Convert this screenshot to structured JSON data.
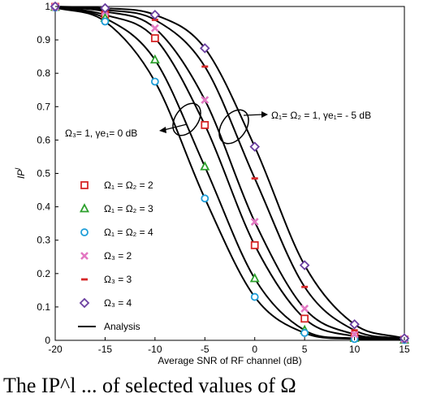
{
  "chart_data": {
    "type": "line",
    "xlabel": "Average SNR of RF channel (dB)",
    "ylabel": "IP^l",
    "xlim": [
      -20,
      15
    ],
    "ylim": [
      0,
      1
    ],
    "x_ticks": [
      "-20",
      "-15",
      "-10",
      "-5",
      "0",
      "5",
      "10",
      "15"
    ],
    "y_ticks": [
      "0",
      "0.1",
      "0.2",
      "0.3",
      "0.4",
      "0.5",
      "0.6",
      "0.7",
      "0.8",
      "0.9",
      "1"
    ],
    "grid": false,
    "legend_position": "left",
    "analysis_label": "Analysis",
    "annotations": [
      {
        "text": "Ω₁= Ω₂ = 1, γe₁= - 5 dB"
      },
      {
        "text": "Ω₃= 1, γe₁= 0 dB"
      }
    ],
    "series": [
      {
        "name": "Ω₁ = Ω₂ = 2",
        "marker": "square",
        "color": "#d62728",
        "x": [
          -20,
          -15,
          -10,
          -5,
          0,
          5,
          10,
          15
        ],
        "y": [
          0.999,
          0.975,
          0.905,
          0.645,
          0.285,
          0.065,
          0.012,
          0.002
        ]
      },
      {
        "name": "Ω₁ = Ω₂ = 3",
        "marker": "triangle",
        "color": "#2ca02c",
        "x": [
          -20,
          -15,
          -10,
          -5,
          0,
          5,
          10,
          15
        ],
        "y": [
          0.998,
          0.965,
          0.84,
          0.52,
          0.185,
          0.03,
          0.006,
          0.001
        ]
      },
      {
        "name": "Ω₁ = Ω₂ = 4",
        "marker": "circle",
        "color": "#1f9ed8",
        "x": [
          -20,
          -15,
          -10,
          -5,
          0,
          5,
          10,
          15
        ],
        "y": [
          0.997,
          0.955,
          0.775,
          0.425,
          0.13,
          0.022,
          0.004,
          0.001
        ]
      },
      {
        "name": "Ω₃ = 2",
        "marker": "x",
        "color": "#e377c2",
        "x": [
          -20,
          -15,
          -10,
          -5,
          0,
          5,
          10,
          15
        ],
        "y": [
          0.999,
          0.985,
          0.935,
          0.72,
          0.355,
          0.095,
          0.018,
          0.003
        ]
      },
      {
        "name": "Ω₃ = 3",
        "marker": "dash",
        "color": "#d62728",
        "x": [
          -20,
          -15,
          -10,
          -5,
          0,
          5,
          10,
          15
        ],
        "y": [
          1.0,
          0.99,
          0.96,
          0.82,
          0.485,
          0.16,
          0.03,
          0.004
        ]
      },
      {
        "name": "Ω₃ = 4",
        "marker": "diamond",
        "color": "#6b3fa0",
        "x": [
          -20,
          -15,
          -10,
          -5,
          0,
          5,
          10,
          15
        ],
        "y": [
          1.0,
          0.995,
          0.975,
          0.875,
          0.58,
          0.225,
          0.048,
          0.006
        ]
      }
    ]
  },
  "caption": "The IP^l ... of selected values of Ω"
}
